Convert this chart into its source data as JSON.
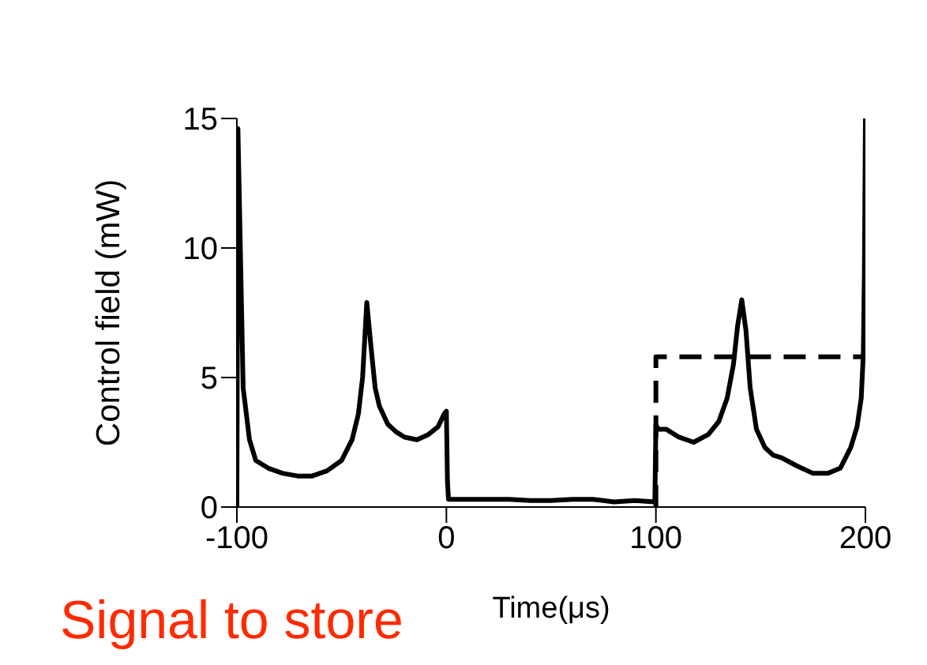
{
  "chart_data": {
    "type": "line",
    "xlabel": "Time(μs)",
    "ylabel": "Control field (mW)",
    "xlim": [
      -100,
      200
    ],
    "ylim": [
      0,
      15
    ],
    "xticks": [
      -100,
      0,
      100,
      200
    ],
    "yticks": [
      0,
      5,
      10,
      15
    ],
    "marker": "none",
    "annotations": [
      "Signal to store"
    ],
    "series": [
      {
        "color": "#000000",
        "line_style": "solid",
        "x": [
          -100,
          -99.5,
          -97,
          -94,
          -91,
          -85,
          -78,
          -71,
          -64,
          -57,
          -50,
          -45,
          -42,
          -40,
          -38,
          -36,
          -34,
          -32,
          -28,
          -24,
          -20,
          -14,
          -8.6,
          -4,
          -1,
          0,
          0.5,
          1,
          10,
          20,
          30,
          40,
          50,
          60,
          70,
          80,
          90,
          99.5,
          100,
          101,
          105,
          111,
          118,
          125,
          130,
          134,
          137,
          139,
          141,
          143,
          145,
          148,
          152,
          156,
          160,
          167,
          175,
          182,
          188,
          193,
          196,
          198,
          199,
          199.5,
          200
        ],
        "values": [
          0,
          14.6,
          4.6,
          2.6,
          1.8,
          1.5,
          1.3,
          1.2,
          1.2,
          1.4,
          1.8,
          2.6,
          3.6,
          5,
          7.9,
          6.2,
          4.6,
          3.9,
          3.2,
          2.9,
          2.7,
          2.6,
          2.8,
          3.1,
          3.6,
          3.7,
          1,
          0.3,
          0.3,
          0.3,
          0.3,
          0.25,
          0.25,
          0.3,
          0.3,
          0.2,
          0.25,
          0.2,
          3.2,
          3.0,
          3.0,
          2.7,
          2.5,
          2.8,
          3.3,
          4.2,
          5.5,
          7,
          8,
          6.8,
          4.6,
          3,
          2.3,
          2,
          1.9,
          1.6,
          1.3,
          1.3,
          1.5,
          2.3,
          3.1,
          4.2,
          5.9,
          9,
          15
        ]
      },
      {
        "color": "#000000",
        "line_style": "dashed",
        "x": [
          100,
          100,
          200
        ],
        "values": [
          0,
          5.8,
          5.8
        ]
      }
    ]
  }
}
